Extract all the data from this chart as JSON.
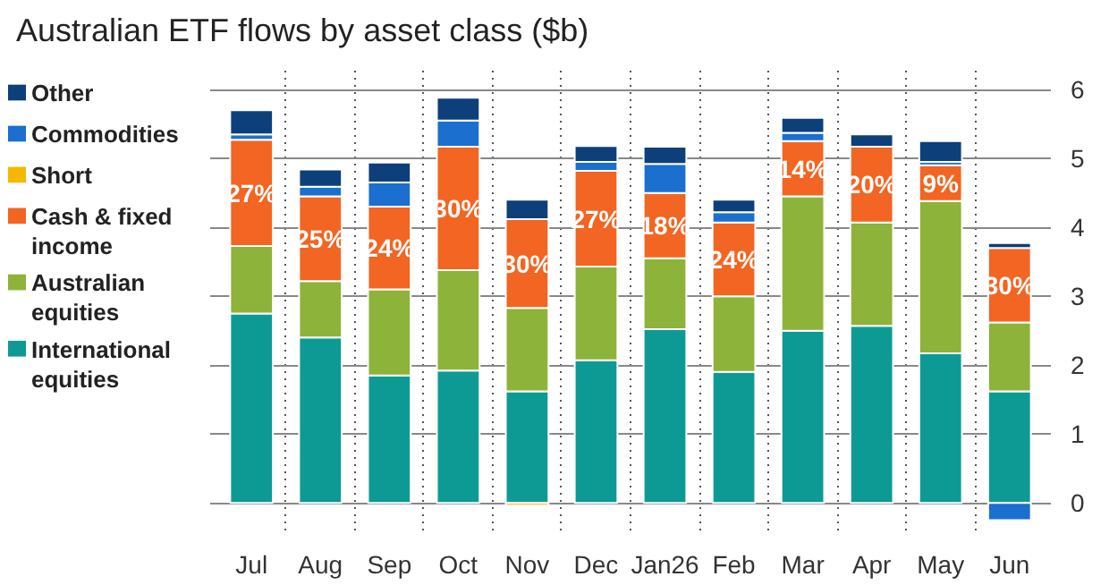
{
  "chart_data": {
    "type": "bar",
    "title": "Australian ETF flows by asset class ($b)",
    "stacked": true,
    "categories": [
      "Jul",
      "Aug",
      "Sep",
      "Oct",
      "Nov",
      "Dec",
      "Jan26",
      "Feb",
      "Mar",
      "Apr",
      "May",
      "Jun"
    ],
    "series": [
      {
        "name": "International equities",
        "color": "#0e9a94",
        "values": [
          2.75,
          2.4,
          1.85,
          1.92,
          1.62,
          2.07,
          2.52,
          1.9,
          2.5,
          2.57,
          2.17,
          1.62
        ]
      },
      {
        "name": "Australian equities",
        "color": "#8db33a",
        "values": [
          0.98,
          0.82,
          1.25,
          1.46,
          1.21,
          1.36,
          1.03,
          1.1,
          1.95,
          1.5,
          2.21,
          1.0
        ]
      },
      {
        "name": "Cash & fixed income",
        "color": "#f26522",
        "values": [
          1.54,
          1.23,
          1.2,
          1.79,
          1.29,
          1.39,
          0.95,
          1.07,
          0.8,
          1.1,
          0.52,
          1.08
        ]
      },
      {
        "name": "Short",
        "color": "#f5b800",
        "values": [
          null,
          null,
          null,
          null,
          -0.04,
          null,
          null,
          null,
          null,
          null,
          null,
          null
        ]
      },
      {
        "name": "Commodities",
        "color": "#1a6fcf",
        "values": [
          0.08,
          0.14,
          0.35,
          0.38,
          null,
          0.13,
          0.42,
          0.15,
          0.12,
          null,
          0.05,
          -0.25
        ]
      },
      {
        "name": "Other",
        "color": "#0d3f7a",
        "values": [
          0.35,
          0.25,
          0.29,
          0.33,
          0.28,
          0.23,
          0.25,
          0.18,
          0.22,
          0.18,
          0.3,
          0.07
        ]
      }
    ],
    "annotations": [
      "27%",
      "25%",
      "24%",
      "30%",
      "30%",
      "27%",
      "18%",
      "24%",
      "14%",
      "20%",
      "9%",
      "30%"
    ],
    "ylim": [
      -0.4,
      6.3
    ],
    "yticks": [
      0,
      1,
      2,
      3,
      4,
      5,
      6
    ],
    "grid": true,
    "legend": "left"
  }
}
